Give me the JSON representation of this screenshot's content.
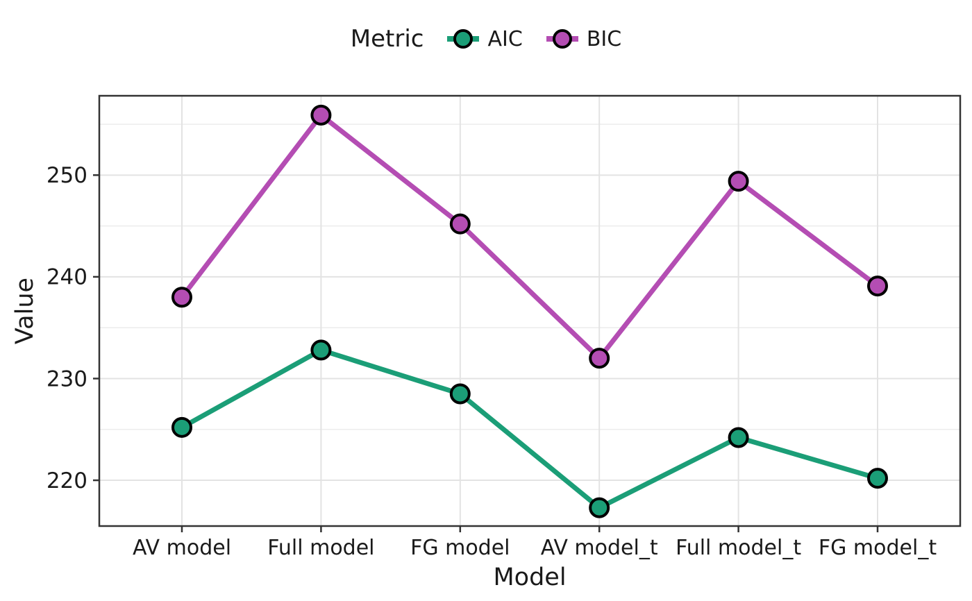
{
  "chart_data": {
    "type": "line",
    "title": "",
    "legend": {
      "title": "Metric",
      "position": "top"
    },
    "categories": [
      "AV model",
      "Full model",
      "FG model",
      "AV model_t",
      "Full model_t",
      "FG model_t"
    ],
    "series": [
      {
        "name": "AIC",
        "color": "#1B9E77",
        "values": [
          225.2,
          232.8,
          228.5,
          217.3,
          224.2,
          220.2
        ]
      },
      {
        "name": "BIC",
        "color": "#B44DB3",
        "values": [
          238.0,
          255.9,
          245.2,
          232.0,
          249.4,
          239.1
        ]
      }
    ],
    "xlabel": "Model",
    "ylabel": "Value",
    "ylim": [
      215.5,
      257.8
    ],
    "yticks_major": [
      220,
      230,
      240,
      250
    ],
    "yticks_minor": [
      225,
      235,
      245,
      255
    ],
    "grid": true,
    "marker": {
      "shape": "circle",
      "outline": "#000000"
    },
    "style": {
      "background": "#FFFFFF",
      "panel_border": "#333333",
      "grid_major": "#E3E3E3",
      "grid_minor": "#EDEDED",
      "text": "#1A1A1A"
    }
  }
}
